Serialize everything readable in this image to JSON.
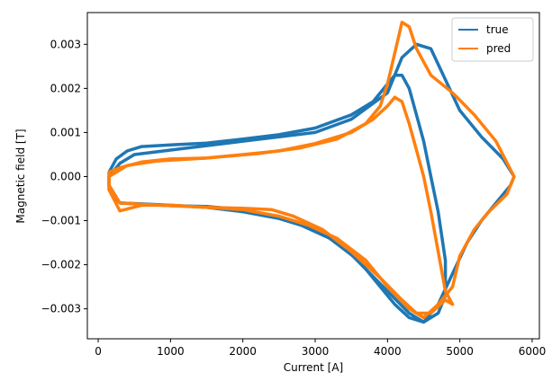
{
  "chart_data": {
    "type": "line",
    "title": "",
    "xlabel": "Current [A]",
    "ylabel": "Magnetic field [T]",
    "xlim": [
      -150,
      6100
    ],
    "ylim": [
      -0.00368,
      0.00372
    ],
    "x_ticks": [
      0,
      1000,
      2000,
      3000,
      4000,
      5000,
      6000
    ],
    "x_tick_labels": [
      "0",
      "1000",
      "2000",
      "3000",
      "4000",
      "5000",
      "6000"
    ],
    "y_ticks": [
      0.003,
      0.002,
      0.001,
      0.0,
      -0.001,
      -0.002,
      -0.003
    ],
    "y_tick_labels": [
      "0.003",
      "0.002",
      "0.001",
      "0.000",
      "−0.001",
      "−0.002",
      "−0.003"
    ],
    "grid": false,
    "legend_position": "top-right",
    "series": [
      {
        "name": "true",
        "color": "#1f77b4",
        "loops": [
          [
            [
              150,
              -0.0002
            ],
            [
              150,
              0.0001
            ],
            [
              250,
              0.0004
            ],
            [
              400,
              0.00058
            ],
            [
              600,
              0.00068
            ],
            [
              1000,
              0.00072
            ],
            [
              1500,
              0.00076
            ],
            [
              2000,
              0.00085
            ],
            [
              2500,
              0.00095
            ],
            [
              3000,
              0.0011
            ],
            [
              3500,
              0.0014
            ],
            [
              3800,
              0.0017
            ],
            [
              4000,
              0.0021
            ],
            [
              4100,
              0.0023
            ],
            [
              4200,
              0.0023
            ],
            [
              4300,
              0.002
            ],
            [
              4400,
              0.0014
            ],
            [
              4500,
              0.0008
            ],
            [
              4600,
              0.0
            ],
            [
              4700,
              -0.0008
            ],
            [
              4800,
              -0.0019
            ],
            [
              4800,
              -0.0027
            ],
            [
              4700,
              -0.0031
            ],
            [
              4500,
              -0.0033
            ],
            [
              4300,
              -0.0032
            ],
            [
              4100,
              -0.0029
            ],
            [
              3900,
              -0.0025
            ],
            [
              3600,
              -0.0019
            ],
            [
              3200,
              -0.0014
            ],
            [
              2800,
              -0.0011
            ],
            [
              2400,
              -0.0009
            ],
            [
              2000,
              -0.00075
            ],
            [
              1500,
              -0.00068
            ],
            [
              1000,
              -0.00066
            ],
            [
              600,
              -0.00063
            ],
            [
              300,
              -0.0006
            ],
            [
              150,
              -0.0002
            ]
          ],
          [
            [
              150,
              0.0
            ],
            [
              300,
              0.0003
            ],
            [
              500,
              0.0005
            ],
            [
              1000,
              0.0006
            ],
            [
              2000,
              0.0008
            ],
            [
              3000,
              0.001
            ],
            [
              3500,
              0.0013
            ],
            [
              4000,
              0.0019
            ],
            [
              4200,
              0.0027
            ],
            [
              4400,
              0.003
            ],
            [
              4600,
              0.0029
            ],
            [
              4800,
              0.0022
            ],
            [
              5000,
              0.0015
            ],
            [
              5300,
              0.0009
            ],
            [
              5600,
              0.0004
            ],
            [
              5750,
              0.0
            ],
            [
              5700,
              -0.0002
            ],
            [
              5500,
              -0.0006
            ],
            [
              5300,
              -0.001
            ],
            [
              5100,
              -0.0015
            ],
            [
              4900,
              -0.0022
            ],
            [
              4700,
              -0.0029
            ],
            [
              4500,
              -0.0033
            ],
            [
              4300,
              -0.0031
            ],
            [
              4000,
              -0.0026
            ],
            [
              3700,
              -0.0021
            ],
            [
              3400,
              -0.0016
            ],
            [
              3000,
              -0.0012
            ],
            [
              2500,
              -0.00095
            ],
            [
              2000,
              -0.0008
            ],
            [
              1500,
              -0.0007
            ],
            [
              1000,
              -0.00065
            ],
            [
              600,
              -0.00062
            ],
            [
              300,
              -0.0006
            ],
            [
              150,
              -0.0003
            ],
            [
              150,
              0.0
            ]
          ]
        ]
      },
      {
        "name": "pred",
        "color": "#ff7f0e",
        "loops": [
          [
            [
              150,
              0.0001
            ],
            [
              300,
              0.0002
            ],
            [
              600,
              0.00033
            ],
            [
              1000,
              0.0004
            ],
            [
              1500,
              0.00042
            ],
            [
              2000,
              0.0005
            ],
            [
              2500,
              0.00058
            ],
            [
              3000,
              0.00075
            ],
            [
              3500,
              0.001
            ],
            [
              3800,
              0.0013
            ],
            [
              4000,
              0.0016
            ],
            [
              4100,
              0.0018
            ],
            [
              4200,
              0.0017
            ],
            [
              4300,
              0.0012
            ],
            [
              4400,
              0.0006
            ],
            [
              4500,
              0.0
            ],
            [
              4600,
              -0.0008
            ],
            [
              4700,
              -0.0017
            ],
            [
              4800,
              -0.0026
            ],
            [
              4900,
              -0.0029
            ],
            [
              4800,
              -0.0028
            ],
            [
              4600,
              -0.0031
            ],
            [
              4400,
              -0.0031
            ],
            [
              4200,
              -0.0028
            ],
            [
              3900,
              -0.0023
            ],
            [
              3500,
              -0.0017
            ],
            [
              3100,
              -0.0012
            ],
            [
              2700,
              -0.0009
            ],
            [
              2400,
              -0.00075
            ],
            [
              2000,
              -0.00072
            ],
            [
              1500,
              -0.0007
            ],
            [
              1000,
              -0.00065
            ],
            [
              600,
              -0.00065
            ],
            [
              300,
              -0.00078
            ],
            [
              150,
              -0.0003
            ],
            [
              150,
              0.0001
            ]
          ],
          [
            [
              150,
              0.0
            ],
            [
              400,
              0.00025
            ],
            [
              800,
              0.00035
            ],
            [
              1500,
              0.00042
            ],
            [
              2200,
              0.00052
            ],
            [
              2800,
              0.00065
            ],
            [
              3300,
              0.00085
            ],
            [
              3700,
              0.0012
            ],
            [
              3900,
              0.0016
            ],
            [
              4000,
              0.0021
            ],
            [
              4100,
              0.0028
            ],
            [
              4200,
              0.0035
            ],
            [
              4300,
              0.0034
            ],
            [
              4400,
              0.0029
            ],
            [
              4600,
              0.0023
            ],
            [
              4900,
              0.0019
            ],
            [
              5200,
              0.0014
            ],
            [
              5500,
              0.0008
            ],
            [
              5750,
              0.0
            ],
            [
              5650,
              -0.0004
            ],
            [
              5400,
              -0.0008
            ],
            [
              5200,
              -0.0012
            ],
            [
              5000,
              -0.0018
            ],
            [
              4900,
              -0.0025
            ],
            [
              4700,
              -0.0029
            ],
            [
              4500,
              -0.0032
            ],
            [
              4300,
              -0.003
            ],
            [
              4000,
              -0.0025
            ],
            [
              3700,
              -0.0019
            ],
            [
              3300,
              -0.0014
            ],
            [
              2900,
              -0.0011
            ],
            [
              2500,
              -0.0009
            ],
            [
              2000,
              -0.00075
            ],
            [
              1500,
              -0.0007
            ],
            [
              1000,
              -0.00066
            ],
            [
              500,
              -0.00062
            ],
            [
              300,
              -0.0006
            ],
            [
              150,
              -0.0002
            ],
            [
              150,
              0.0
            ]
          ]
        ]
      }
    ]
  }
}
